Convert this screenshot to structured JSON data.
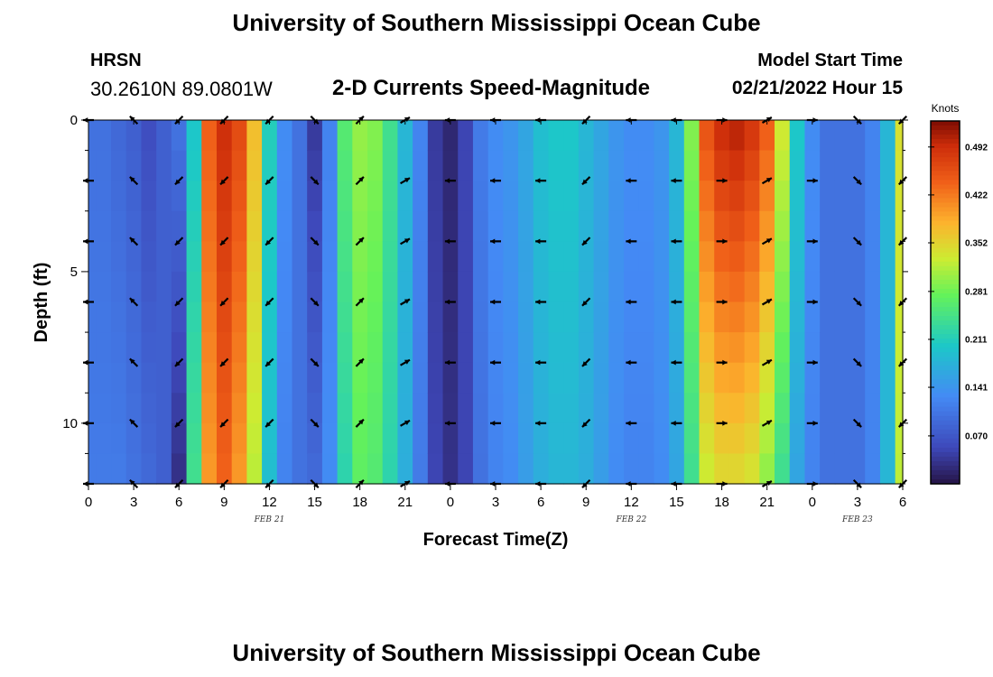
{
  "header": {
    "title": "University of Southern Mississippi Ocean Cube",
    "station": "HRSN",
    "coordinates": "30.2610N  89.0801W",
    "subtitle": "2-D Currents Speed-Magnitude",
    "model_start_label": "Model Start Time",
    "model_start_value": "02/21/2022 Hour 15"
  },
  "footer": {
    "title": "University of Southern Mississippi Ocean Cube"
  },
  "chart_data": {
    "type": "heatmap",
    "title": "2-D Currents Speed-Magnitude",
    "xlabel": "Forecast Time(Z)",
    "ylabel": "Depth (ft)",
    "x_range_hours": [
      0,
      54
    ],
    "y_range_ft": [
      0,
      12
    ],
    "x_ticks": [
      "0",
      "3",
      "6",
      "9",
      "12",
      "15",
      "18",
      "21",
      "0",
      "3",
      "6",
      "9",
      "12",
      "15",
      "18",
      "21",
      "0",
      "3",
      "6"
    ],
    "y_ticks": [
      "0",
      "5",
      "10"
    ],
    "date_labels": [
      {
        "label": "FEB 21",
        "hour": 12
      },
      {
        "label": "FEB 22",
        "hour": 36
      },
      {
        "label": "FEB 23",
        "hour": 51
      }
    ],
    "colorbar": {
      "unit": "Knots",
      "ticks": [
        "0.492",
        "0.422",
        "0.352",
        "0.281",
        "0.211",
        "0.141",
        "0.070"
      ],
      "tick_values": [
        0.492,
        0.422,
        0.352,
        0.281,
        0.211,
        0.141,
        0.07
      ],
      "range": [
        0.0,
        0.53
      ]
    },
    "speed_by_hour": {
      "hours": [
        0,
        1,
        2,
        3,
        4,
        5,
        6,
        7,
        8,
        9,
        10,
        11,
        12,
        13,
        14,
        15,
        16,
        17,
        18,
        19,
        20,
        21,
        22,
        23,
        24,
        25,
        26,
        27,
        28,
        29,
        30,
        31,
        32,
        33,
        34,
        35,
        36,
        37,
        38,
        39,
        40,
        41,
        42,
        43,
        44,
        45,
        46,
        47,
        48,
        49,
        50,
        51,
        52,
        53,
        54
      ],
      "surface": [
        0.1,
        0.1,
        0.09,
        0.08,
        0.06,
        0.08,
        0.1,
        0.2,
        0.44,
        0.49,
        0.46,
        0.37,
        0.21,
        0.13,
        0.1,
        0.04,
        0.12,
        0.26,
        0.3,
        0.29,
        0.24,
        0.18,
        0.12,
        0.04,
        0.02,
        0.05,
        0.11,
        0.13,
        0.14,
        0.16,
        0.19,
        0.2,
        0.2,
        0.18,
        0.16,
        0.14,
        0.13,
        0.13,
        0.14,
        0.18,
        0.29,
        0.45,
        0.49,
        0.5,
        0.48,
        0.44,
        0.33,
        0.2,
        0.13,
        0.1,
        0.1,
        0.1,
        0.12,
        0.18,
        0.34
      ],
      "bottom": [
        0.11,
        0.11,
        0.11,
        0.1,
        0.09,
        0.08,
        0.03,
        0.24,
        0.4,
        0.44,
        0.4,
        0.32,
        0.19,
        0.12,
        0.1,
        0.09,
        0.13,
        0.22,
        0.27,
        0.26,
        0.22,
        0.17,
        0.11,
        0.05,
        0.03,
        0.05,
        0.1,
        0.12,
        0.13,
        0.15,
        0.17,
        0.18,
        0.18,
        0.17,
        0.15,
        0.13,
        0.12,
        0.12,
        0.13,
        0.16,
        0.24,
        0.33,
        0.35,
        0.35,
        0.34,
        0.3,
        0.24,
        0.16,
        0.12,
        0.1,
        0.1,
        0.1,
        0.12,
        0.18,
        0.32
      ]
    },
    "arrows": {
      "hours": [
        0,
        3,
        6,
        9,
        12,
        15,
        18,
        21,
        24,
        27,
        30,
        33,
        36,
        39,
        42,
        45,
        48,
        51,
        54
      ],
      "depths_ft": [
        0,
        2,
        4,
        6,
        8,
        10,
        12
      ],
      "direction_deg_by_hour": [
        270,
        315,
        225,
        225,
        225,
        135,
        45,
        60,
        270,
        270,
        270,
        225,
        270,
        270,
        90,
        60,
        90,
        135,
        225
      ]
    }
  }
}
